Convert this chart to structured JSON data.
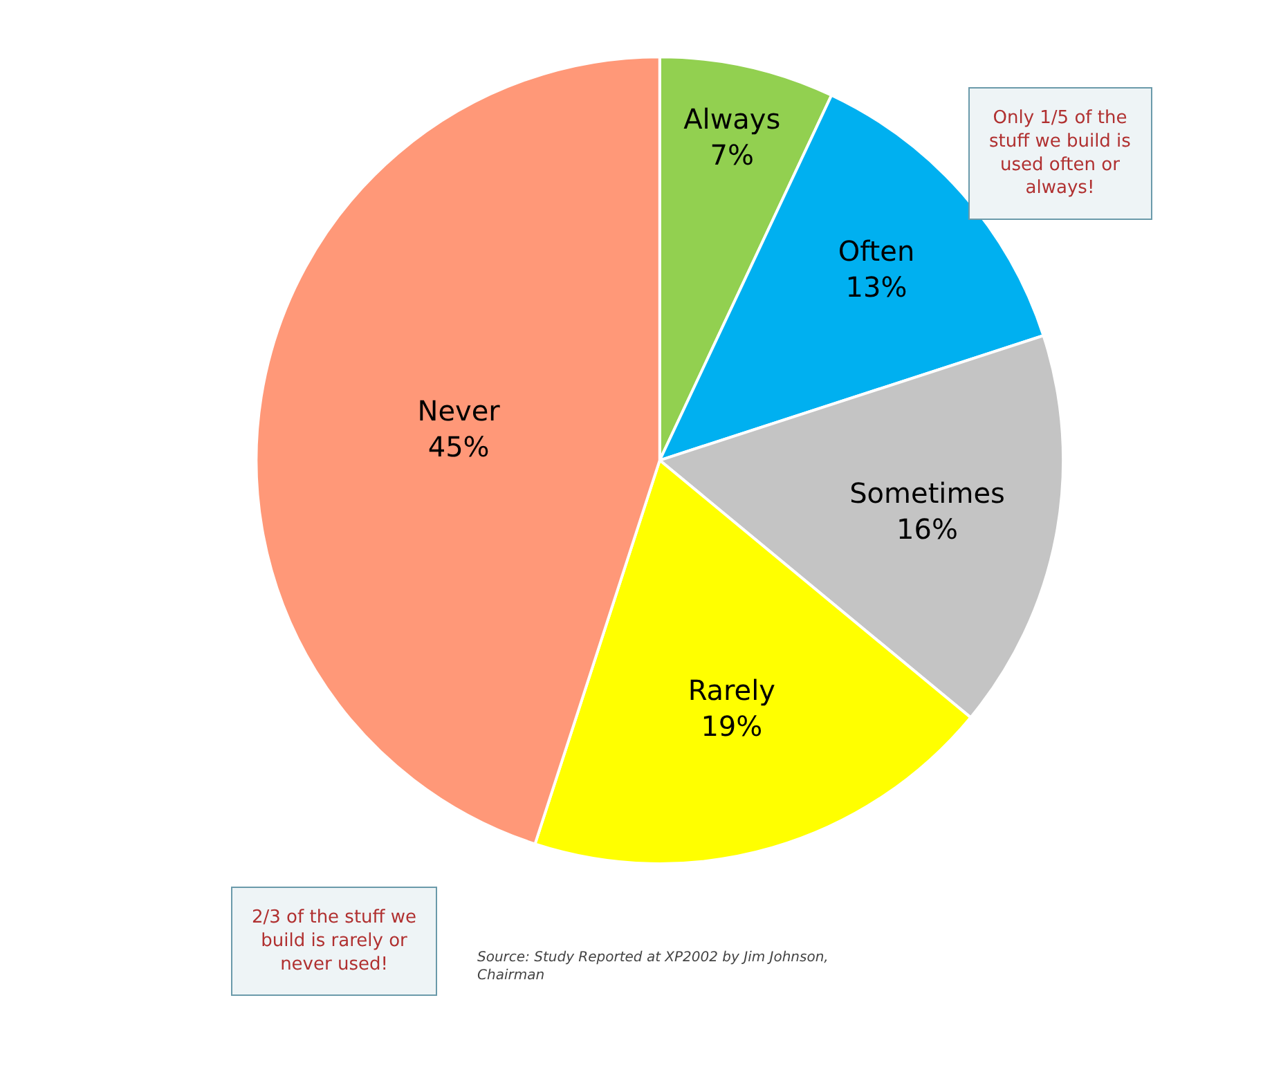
{
  "chart_data": {
    "type": "pie",
    "categories": [
      "Always",
      "Often",
      "Sometimes",
      "Rarely",
      "Never"
    ],
    "values": [
      7,
      13,
      16,
      19,
      45
    ],
    "value_labels": [
      "7%",
      "13%",
      "16%",
      "19%",
      "45%"
    ],
    "colors": [
      "#92d050",
      "#00b0f0",
      "#c4c4c4",
      "#ffff00",
      "#ff9878"
    ],
    "legend": false,
    "annotations": [
      "Only 1/5 of the stuff we build is used often or always!",
      "2/3 of the stuff we build is rarely or never used!",
      "Source: Study Reported at XP2002 by Jim Johnson, Chairman"
    ]
  }
}
